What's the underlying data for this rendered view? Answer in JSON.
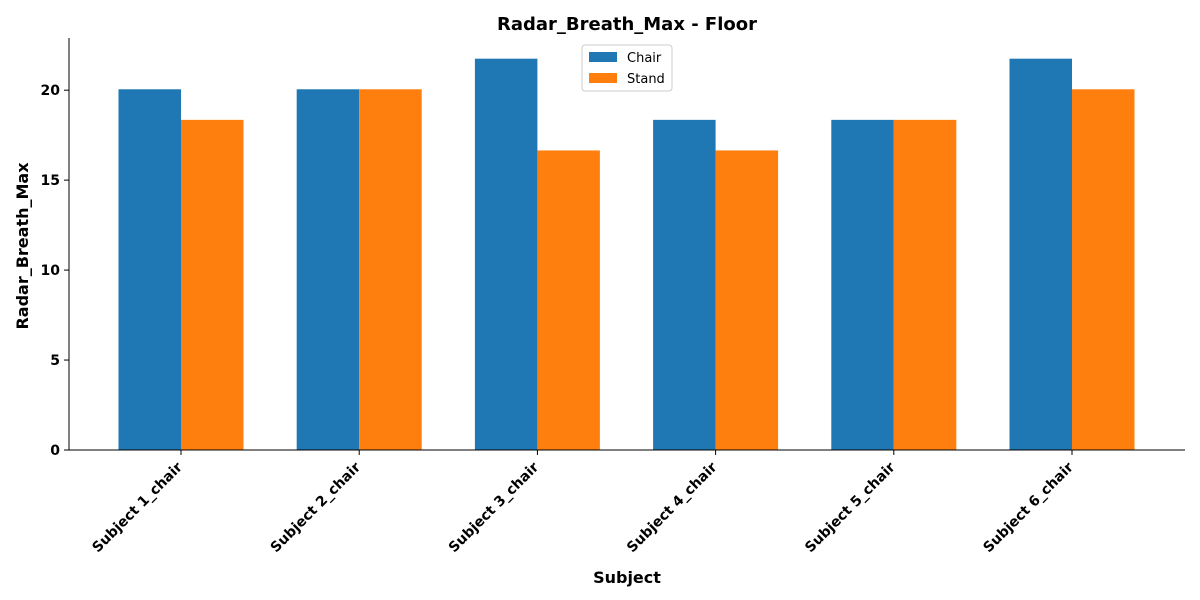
{
  "chart_data": {
    "type": "bar",
    "title": "Radar_Breath_Max - Floor",
    "xlabel": "Subject",
    "ylabel": "Radar_Breath_Max",
    "categories": [
      "Subject 1_chair",
      "Subject 2_chair",
      "Subject 3_chair",
      "Subject 4_chair",
      "Subject 5_chair",
      "Subject 6_chair"
    ],
    "series": [
      {
        "name": "Chair",
        "color": "#1f77b4",
        "values": [
          20.05,
          20.05,
          21.75,
          18.35,
          18.35,
          21.75
        ]
      },
      {
        "name": "Stand",
        "color": "#ff7f0e",
        "values": [
          18.35,
          20.05,
          16.65,
          16.65,
          18.35,
          20.05
        ]
      }
    ],
    "ylim": [
      0,
      22.9
    ],
    "yticks": [
      0,
      5,
      10,
      15,
      20
    ],
    "grid": false,
    "legend_position": "top-center"
  }
}
